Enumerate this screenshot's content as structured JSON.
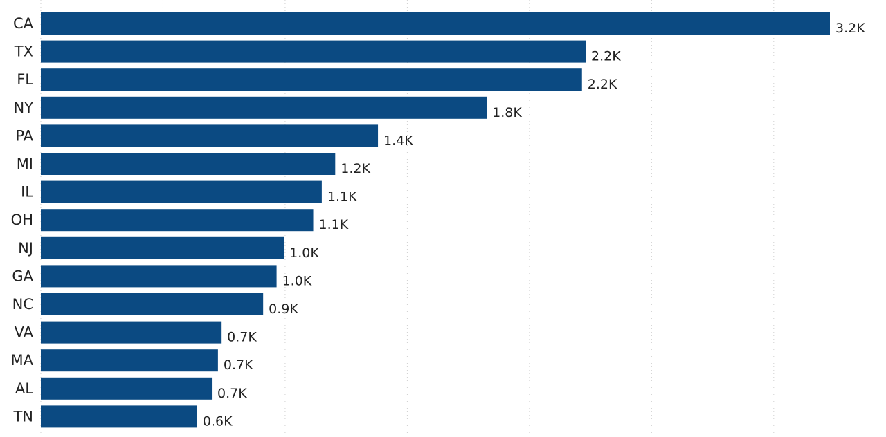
{
  "chart_data": {
    "type": "bar",
    "orientation": "horizontal",
    "categories": [
      "CA",
      "TX",
      "FL",
      "NY",
      "PA",
      "MI",
      "IL",
      "OH",
      "NJ",
      "GA",
      "NC",
      "VA",
      "MA",
      "AL",
      "TN"
    ],
    "values": [
      3230,
      2230,
      2215,
      1825,
      1380,
      1205,
      1150,
      1115,
      995,
      965,
      910,
      740,
      725,
      700,
      640
    ],
    "data_labels": [
      "3.2K",
      "2.2K",
      "2.2K",
      "1.8K",
      "1.4K",
      "1.2K",
      "1.1K",
      "1.1K",
      "1.0K",
      "1.0K",
      "0.9K",
      "0.7K",
      "0.7K",
      "0.7K",
      "0.6K"
    ],
    "xlim": [
      0,
      3500
    ],
    "x_gridlines": [
      0,
      500,
      1000,
      1500,
      2000,
      2500,
      3000
    ],
    "grid": true,
    "legend": "none",
    "title": "",
    "xlabel": "",
    "ylabel": "",
    "bar_color": "#0b4a82",
    "gridline_color": "#cfcfcf"
  }
}
